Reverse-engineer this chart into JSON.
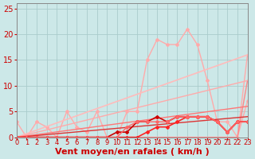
{
  "xlabel": "Vent moyen/en rafales ( km/h )",
  "xlim": [
    0,
    23
  ],
  "ylim": [
    0,
    26
  ],
  "xticks": [
    0,
    1,
    2,
    3,
    4,
    5,
    6,
    7,
    8,
    9,
    10,
    11,
    12,
    13,
    14,
    15,
    16,
    17,
    18,
    19,
    20,
    21,
    22,
    23
  ],
  "yticks": [
    0,
    5,
    10,
    15,
    20,
    25
  ],
  "bg_color": "#cce8e8",
  "grid_color": "#aacccc",
  "series": [
    {
      "x": [
        0,
        1,
        2,
        3,
        4,
        5,
        6,
        7,
        8,
        9,
        10,
        11,
        12,
        13,
        14,
        15,
        16,
        17,
        18,
        19,
        20,
        21,
        22,
        23
      ],
      "y": [
        0,
        0,
        0,
        0,
        0,
        0,
        0,
        0,
        0,
        0,
        0,
        0,
        0,
        0,
        0,
        0,
        0,
        0,
        0,
        0,
        0,
        0,
        0,
        16
      ],
      "color": "#ffaaaa",
      "lw": 1.0,
      "marker": null,
      "ms": 0,
      "linestyle": "-"
    },
    {
      "x": [
        0,
        1,
        2,
        3,
        4,
        5,
        6,
        7,
        8,
        9,
        10,
        11,
        12,
        13,
        14,
        15,
        16,
        17,
        18,
        19,
        20,
        21,
        22,
        23
      ],
      "y": [
        3,
        0,
        3,
        2,
        0,
        5,
        2,
        1,
        5,
        0,
        0,
        5,
        5,
        15,
        19,
        18,
        18,
        21,
        18,
        11,
        3,
        3,
        0,
        7
      ],
      "color": "#ffaaaa",
      "lw": 1.0,
      "marker": "D",
      "ms": 2,
      "linestyle": "-"
    },
    {
      "x": [
        0,
        1,
        2,
        3,
        4,
        5,
        6,
        7,
        8,
        9,
        10,
        11,
        12,
        13,
        14,
        15,
        16,
        17,
        18,
        19,
        20,
        21,
        22,
        23
      ],
      "y": [
        0,
        0,
        0,
        0,
        0,
        0,
        0,
        0,
        0,
        0,
        0,
        0,
        0,
        0,
        0,
        0,
        0,
        0,
        0,
        0,
        0,
        0,
        0,
        11
      ],
      "color": "#ff8888",
      "lw": 1.0,
      "marker": null,
      "ms": 0,
      "linestyle": "-"
    },
    {
      "x": [
        0,
        23
      ],
      "y": [
        0,
        16
      ],
      "color": "#ffbbbb",
      "lw": 1.2,
      "marker": null,
      "ms": 0,
      "linestyle": "-"
    },
    {
      "x": [
        0,
        23
      ],
      "y": [
        0,
        11
      ],
      "color": "#ffaaaa",
      "lw": 1.0,
      "marker": null,
      "ms": 0,
      "linestyle": "-"
    },
    {
      "x": [
        0,
        23
      ],
      "y": [
        0,
        6
      ],
      "color": "#ff7777",
      "lw": 1.0,
      "marker": null,
      "ms": 0,
      "linestyle": "-"
    },
    {
      "x": [
        0,
        23
      ],
      "y": [
        0,
        4
      ],
      "color": "#dd3333",
      "lw": 1.0,
      "marker": null,
      "ms": 0,
      "linestyle": "-"
    },
    {
      "x": [
        0,
        1,
        2,
        3,
        4,
        5,
        6,
        7,
        8,
        9,
        10,
        11,
        12,
        13,
        14,
        15,
        16,
        17,
        18,
        19,
        20,
        21,
        22,
        23
      ],
      "y": [
        0,
        0,
        0,
        0,
        0,
        0,
        0,
        0,
        0,
        0,
        1,
        1,
        3,
        3,
        4,
        3,
        4,
        4,
        4,
        4,
        3,
        1,
        3,
        3
      ],
      "color": "#cc0000",
      "lw": 1.2,
      "marker": "D",
      "ms": 2,
      "linestyle": "-"
    },
    {
      "x": [
        0,
        1,
        2,
        3,
        4,
        5,
        6,
        7,
        8,
        9,
        10,
        11,
        12,
        13,
        14,
        15,
        16,
        17,
        18,
        19,
        20,
        21,
        22,
        23
      ],
      "y": [
        0,
        0,
        0,
        0,
        0,
        0,
        0,
        0,
        0,
        0,
        0,
        0,
        0,
        1,
        2,
        2,
        3,
        4,
        4,
        4,
        3,
        1,
        3,
        3
      ],
      "color": "#ff2222",
      "lw": 1.2,
      "marker": "D",
      "ms": 2,
      "linestyle": "-"
    },
    {
      "x": [
        0,
        1,
        2,
        3,
        4,
        5,
        6,
        7,
        8,
        9,
        10,
        11,
        12,
        13,
        14,
        15,
        16,
        17,
        18,
        19,
        20,
        21,
        22,
        23
      ],
      "y": [
        0,
        0,
        0,
        0,
        0,
        0,
        0,
        0,
        0,
        0,
        0,
        2,
        3,
        3,
        3,
        3,
        4,
        4,
        4,
        4,
        3,
        1,
        3,
        3
      ],
      "color": "#ff6666",
      "lw": 1.0,
      "marker": "D",
      "ms": 2,
      "linestyle": "-"
    }
  ],
  "xlabel_color": "#cc0000",
  "xlabel_fontsize": 8,
  "tick_color": "#cc0000",
  "tick_fontsize": 6,
  "ytick_fontsize": 7,
  "spine_color": "#888888"
}
